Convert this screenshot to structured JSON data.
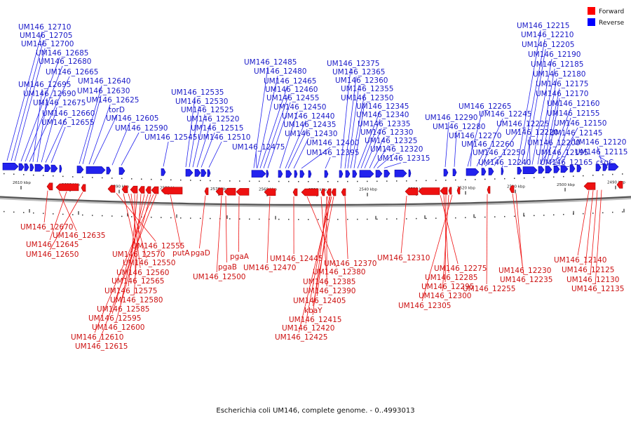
{
  "legend": [
    {
      "label": "Forward",
      "color": "#ff0000"
    },
    {
      "label": "Reverse",
      "color": "#0000ff"
    }
  ],
  "caption": "Escherichia coli UM146, complete genome. - 0..4993013",
  "ticks": [
    "2610 kbp",
    "2600 kbp",
    "2590 kbp",
    "2580 kbp",
    "2570 kbp",
    "2560 kbp",
    "2550 kbp",
    "2540 kbp",
    "2530 kbp",
    "2520 kbp",
    "2510 kbp",
    "2500 kbp",
    "2490 kbp"
  ],
  "reverse_labels": [
    "UM146_12710",
    "UM146_12705",
    "UM146_12700",
    "UM146_12685",
    "UM146_12680",
    "UM146_12665",
    "UM146_12695",
    "UM146_12690",
    "UM146_12675",
    "UM146_12660",
    "UM146_12655",
    "UM146_12640",
    "UM146_12630",
    "UM146_12625",
    "torD",
    "UM146_12605",
    "UM146_12590",
    "UM146_12535",
    "UM146_12530",
    "UM146_12525",
    "UM146_12520",
    "UM146_12515",
    "UM146_12545",
    "UM146_12510",
    "UM146_12485",
    "UM146_12480",
    "UM146_12465",
    "UM146_12460",
    "UM146_12455",
    "UM146_12450",
    "UM146_12440",
    "UM146_12435",
    "UM146_12430",
    "UM146_12475",
    "UM146_12400",
    "UM146_12395",
    "UM146_12375",
    "UM146_12365",
    "UM146_12360",
    "UM146_12355",
    "UM146_12350",
    "UM146_12345",
    "UM146_12340",
    "UM146_12335",
    "UM146_12330",
    "UM146_12325",
    "UM146_12320",
    "UM146_12315",
    "UM146_12290",
    "UM146_12280",
    "UM146_12265",
    "UM146_12245",
    "UM146_12270",
    "UM146_12225",
    "UM146_12260",
    "UM146_12250",
    "UM146_12240",
    "UM146_12215",
    "UM146_12210",
    "UM146_12205",
    "UM146_12190",
    "UM146_12185",
    "UM146_12180",
    "UM146_12175",
    "UM146_12170",
    "UM146_12160",
    "UM146_12155",
    "UM146_12220",
    "UM146_12150",
    "UM146_12145",
    "UM146_12200",
    "UM146_12195",
    "UM146_12120",
    "UM146_12165",
    "UM146_12115",
    "csgC"
  ],
  "forward_labels": [
    "UM146_12670",
    "UM146_12635",
    "UM146_12645",
    "UM146_12650",
    "UM146_12555",
    "UM146_12570",
    "UM146_12550",
    "UM146_12560",
    "UM146_12565",
    "UM146_12575",
    "UM146_12580",
    "UM146_12585",
    "UM146_12595",
    "UM146_12600",
    "UM146_12610",
    "UM146_12615",
    "putA",
    "pgaD",
    "pgaA",
    "pgaB",
    "UM146_12500",
    "UM146_12470",
    "UM146_12445",
    "UM146_12380",
    "UM146_12370",
    "UM146_12385",
    "UM146_12390",
    "UM146_12405",
    "kbaY",
    "UM146_12415",
    "UM146_12420",
    "UM146_12425",
    "UM146_12310",
    "UM146_12275",
    "UM146_12285",
    "UM146_12295",
    "UM146_12300",
    "UM146_12305",
    "UM146_12255",
    "UM146_12230",
    "UM146_12235",
    "UM146_12140",
    "UM146_12125",
    "UM146_12130",
    "UM146_12135"
  ]
}
